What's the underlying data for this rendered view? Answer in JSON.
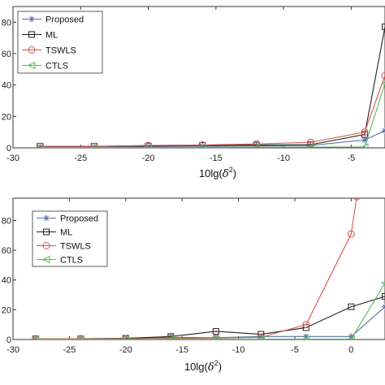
{
  "chart_data": [
    {
      "type": "line",
      "xlabel": "10lg(δ²)",
      "xlabel_parts": {
        "prefix": "10lg(",
        "symbol": "δ",
        "sup": "2",
        "suffix": ")"
      },
      "xlim": [
        -30,
        -2.5
      ],
      "ylim": [
        0,
        90
      ],
      "xticks": [
        -30,
        -25,
        -20,
        -15,
        -10,
        -5
      ],
      "yticks": [
        0,
        20,
        40,
        60,
        80
      ],
      "grid": false,
      "legend_position": "top-left",
      "series": [
        {
          "name": "Proposed",
          "color": "#5b6fa8",
          "marker": "star",
          "x": [
            -28,
            -24,
            -20,
            -16,
            -12,
            -8,
            -4,
            -2.5
          ],
          "y": [
            0.5,
            0.5,
            0.8,
            1.0,
            1.2,
            1.5,
            5.0,
            11.0
          ]
        },
        {
          "name": "ML",
          "color": "#222222",
          "marker": "square",
          "x": [
            -28,
            -24,
            -20,
            -16,
            -12,
            -8,
            -4,
            -2.5
          ],
          "y": [
            1.0,
            1.0,
            1.2,
            1.5,
            1.8,
            2.0,
            8.5,
            77.0
          ]
        },
        {
          "name": "TSWLS",
          "color": "#d9534f",
          "marker": "circle",
          "x": [
            -28,
            -24,
            -20,
            -16,
            -12,
            -8,
            -4,
            -2.5
          ],
          "y": [
            1.0,
            1.0,
            1.5,
            1.8,
            2.5,
            3.5,
            10.0,
            46.0
          ]
        },
        {
          "name": "CTLS",
          "color": "#5cb85c",
          "marker": "triangle-left",
          "x": [
            -28,
            -24,
            -20,
            -16,
            -12,
            -8,
            -4,
            -2.5
          ],
          "y": [
            0.2,
            0.2,
            0.3,
            0.3,
            0.4,
            0.5,
            0.5,
            41.0
          ]
        }
      ]
    },
    {
      "type": "line",
      "xlabel": "10lg(δ²)",
      "xlabel_parts": {
        "prefix": "10lg(",
        "symbol": "δ",
        "sup": "2",
        "suffix": ")"
      },
      "xlim": [
        -30,
        3
      ],
      "ylim": [
        0,
        95
      ],
      "xticks": [
        -30,
        -25,
        -20,
        -15,
        -10,
        -5,
        0
      ],
      "yticks": [
        0,
        20,
        40,
        60,
        80
      ],
      "grid": false,
      "legend_position": "top-left",
      "series": [
        {
          "name": "Proposed",
          "color": "#5b6fa8",
          "marker": "star",
          "x": [
            -28,
            -24,
            -20,
            -16,
            -12,
            -8,
            -4,
            0,
            3
          ],
          "y": [
            0.5,
            0.5,
            0.8,
            1.5,
            1.2,
            2.0,
            2.0,
            2.0,
            22.0
          ]
        },
        {
          "name": "ML",
          "color": "#222222",
          "marker": "square",
          "x": [
            -28,
            -24,
            -20,
            -16,
            -12,
            -8,
            -4,
            0,
            3
          ],
          "y": [
            0.5,
            0.5,
            0.8,
            2.0,
            5.5,
            3.5,
            8.0,
            22.0,
            29.0
          ]
        },
        {
          "name": "TSWLS",
          "color": "#d9534f",
          "marker": "circle",
          "x": [
            -28,
            -24,
            -20,
            -16,
            -12,
            -8,
            -4,
            0,
            0.5
          ],
          "y": [
            0.5,
            0.5,
            0.5,
            0.8,
            1.0,
            1.5,
            10.0,
            71.0,
            96.0
          ]
        },
        {
          "name": "CTLS",
          "color": "#5cb85c",
          "marker": "triangle-left",
          "x": [
            -28,
            -24,
            -20,
            -16,
            -12,
            -8,
            -4,
            0,
            3
          ],
          "y": [
            0.2,
            0.2,
            0.2,
            0.3,
            0.3,
            0.3,
            0.3,
            0.3,
            38.0
          ]
        }
      ]
    }
  ]
}
